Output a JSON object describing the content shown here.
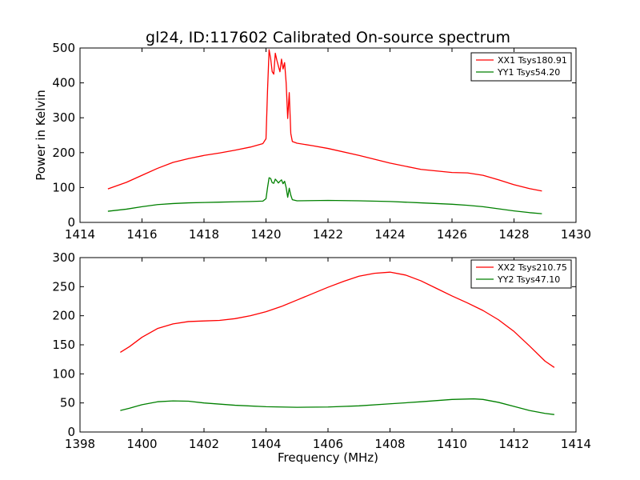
{
  "chart_data": [
    {
      "type": "line",
      "title": "gl24, ID:117602 Calibrated On-source spectrum",
      "xlabel": "",
      "ylabel": "Power in Kelvin",
      "xlim": [
        1414,
        1430
      ],
      "ylim": [
        0,
        500
      ],
      "xticks": [
        "1414",
        "1416",
        "1418",
        "1420",
        "1422",
        "1424",
        "1426",
        "1428",
        "1430"
      ],
      "yticks": [
        "0",
        "100",
        "200",
        "300",
        "400",
        "500"
      ],
      "grid": false,
      "legend_position": "top-right",
      "series": [
        {
          "name": "XX1 Tsys180.91",
          "color": "#ff0000",
          "points": [
            [
              1414.9,
              96
            ],
            [
              1415.5,
              115
            ],
            [
              1416.0,
              135
            ],
            [
              1416.5,
              155
            ],
            [
              1417.0,
              172
            ],
            [
              1417.5,
              183
            ],
            [
              1418.0,
              192
            ],
            [
              1418.5,
              199
            ],
            [
              1419.0,
              207
            ],
            [
              1419.5,
              216
            ],
            [
              1419.9,
              226
            ],
            [
              1420.0,
              240
            ],
            [
              1420.05,
              380
            ],
            [
              1420.1,
              495
            ],
            [
              1420.15,
              470
            ],
            [
              1420.2,
              432
            ],
            [
              1420.25,
              425
            ],
            [
              1420.3,
              485
            ],
            [
              1420.35,
              465
            ],
            [
              1420.4,
              448
            ],
            [
              1420.45,
              432
            ],
            [
              1420.5,
              468
            ],
            [
              1420.55,
              440
            ],
            [
              1420.6,
              458
            ],
            [
              1420.65,
              400
            ],
            [
              1420.7,
              298
            ],
            [
              1420.75,
              372
            ],
            [
              1420.8,
              255
            ],
            [
              1420.85,
              232
            ],
            [
              1421.0,
              227
            ],
            [
              1421.5,
              220
            ],
            [
              1422.0,
              212
            ],
            [
              1423.0,
              192
            ],
            [
              1424.0,
              170
            ],
            [
              1425.0,
              152
            ],
            [
              1426.0,
              143
            ],
            [
              1426.5,
              142
            ],
            [
              1427.0,
              135
            ],
            [
              1427.5,
              122
            ],
            [
              1428.0,
              108
            ],
            [
              1428.5,
              97
            ],
            [
              1428.9,
              90
            ]
          ]
        },
        {
          "name": "YY1 Tsys54.20",
          "color": "#008000",
          "points": [
            [
              1414.9,
              32
            ],
            [
              1415.5,
              38
            ],
            [
              1416.0,
              45
            ],
            [
              1416.5,
              51
            ],
            [
              1417.0,
              54
            ],
            [
              1417.5,
              56
            ],
            [
              1418.0,
              57
            ],
            [
              1418.5,
              58
            ],
            [
              1419.0,
              59
            ],
            [
              1419.5,
              60
            ],
            [
              1419.9,
              61
            ],
            [
              1420.0,
              68
            ],
            [
              1420.05,
              100
            ],
            [
              1420.1,
              128
            ],
            [
              1420.15,
              126
            ],
            [
              1420.2,
              114
            ],
            [
              1420.25,
              112
            ],
            [
              1420.3,
              124
            ],
            [
              1420.35,
              119
            ],
            [
              1420.4,
              113
            ],
            [
              1420.45,
              118
            ],
            [
              1420.5,
              122
            ],
            [
              1420.55,
              111
            ],
            [
              1420.6,
              118
            ],
            [
              1420.65,
              100
            ],
            [
              1420.7,
              72
            ],
            [
              1420.75,
              98
            ],
            [
              1420.8,
              78
            ],
            [
              1420.85,
              65
            ],
            [
              1421.0,
              62
            ],
            [
              1422.0,
              63
            ],
            [
              1423.0,
              62
            ],
            [
              1424.0,
              60
            ],
            [
              1425.0,
              56
            ],
            [
              1426.0,
              52
            ],
            [
              1426.5,
              49
            ],
            [
              1427.0,
              45
            ],
            [
              1427.5,
              39
            ],
            [
              1428.0,
              33
            ],
            [
              1428.5,
              28
            ],
            [
              1428.9,
              25
            ]
          ]
        }
      ]
    },
    {
      "type": "line",
      "title": "",
      "xlabel": "Frequency (MHz)",
      "ylabel": "",
      "xlim": [
        1398,
        1414
      ],
      "ylim": [
        0,
        300
      ],
      "xticks": [
        "1398",
        "1400",
        "1402",
        "1404",
        "1406",
        "1408",
        "1410",
        "1412",
        "1414"
      ],
      "yticks": [
        "0",
        "50",
        "100",
        "150",
        "200",
        "250",
        "300"
      ],
      "grid": false,
      "legend_position": "top-right",
      "series": [
        {
          "name": "XX2 Tsys210.75",
          "color": "#ff0000",
          "points": [
            [
              1399.3,
              137
            ],
            [
              1399.6,
              147
            ],
            [
              1400.0,
              163
            ],
            [
              1400.5,
              178
            ],
            [
              1401.0,
              186
            ],
            [
              1401.5,
              190
            ],
            [
              1402.0,
              191
            ],
            [
              1402.5,
              192
            ],
            [
              1403.0,
              195
            ],
            [
              1403.5,
              200
            ],
            [
              1404.0,
              207
            ],
            [
              1404.5,
              216
            ],
            [
              1405.0,
              227
            ],
            [
              1405.5,
              238
            ],
            [
              1406.0,
              249
            ],
            [
              1406.5,
              259
            ],
            [
              1407.0,
              268
            ],
            [
              1407.5,
              273
            ],
            [
              1408.0,
              275
            ],
            [
              1408.5,
              270
            ],
            [
              1409.0,
              260
            ],
            [
              1409.5,
              247
            ],
            [
              1410.0,
              234
            ],
            [
              1410.5,
              222
            ],
            [
              1411.0,
              209
            ],
            [
              1411.5,
              193
            ],
            [
              1412.0,
              173
            ],
            [
              1412.5,
              148
            ],
            [
              1413.0,
              122
            ],
            [
              1413.3,
              111
            ]
          ]
        },
        {
          "name": "YY2 Tsys47.10",
          "color": "#008000",
          "points": [
            [
              1399.3,
              37
            ],
            [
              1399.6,
              41
            ],
            [
              1400.0,
              47
            ],
            [
              1400.5,
              52
            ],
            [
              1401.0,
              53.5
            ],
            [
              1401.5,
              53
            ],
            [
              1402.0,
              50
            ],
            [
              1403.0,
              46
            ],
            [
              1404.0,
              43.5
            ],
            [
              1405.0,
              42.5
            ],
            [
              1406.0,
              43
            ],
            [
              1407.0,
              45
            ],
            [
              1408.0,
              48.5
            ],
            [
              1409.0,
              52
            ],
            [
              1410.0,
              56
            ],
            [
              1410.7,
              57
            ],
            [
              1411.0,
              56
            ],
            [
              1411.5,
              51
            ],
            [
              1412.0,
              44
            ],
            [
              1412.5,
              37
            ],
            [
              1413.0,
              32
            ],
            [
              1413.3,
              30
            ]
          ]
        }
      ]
    }
  ]
}
